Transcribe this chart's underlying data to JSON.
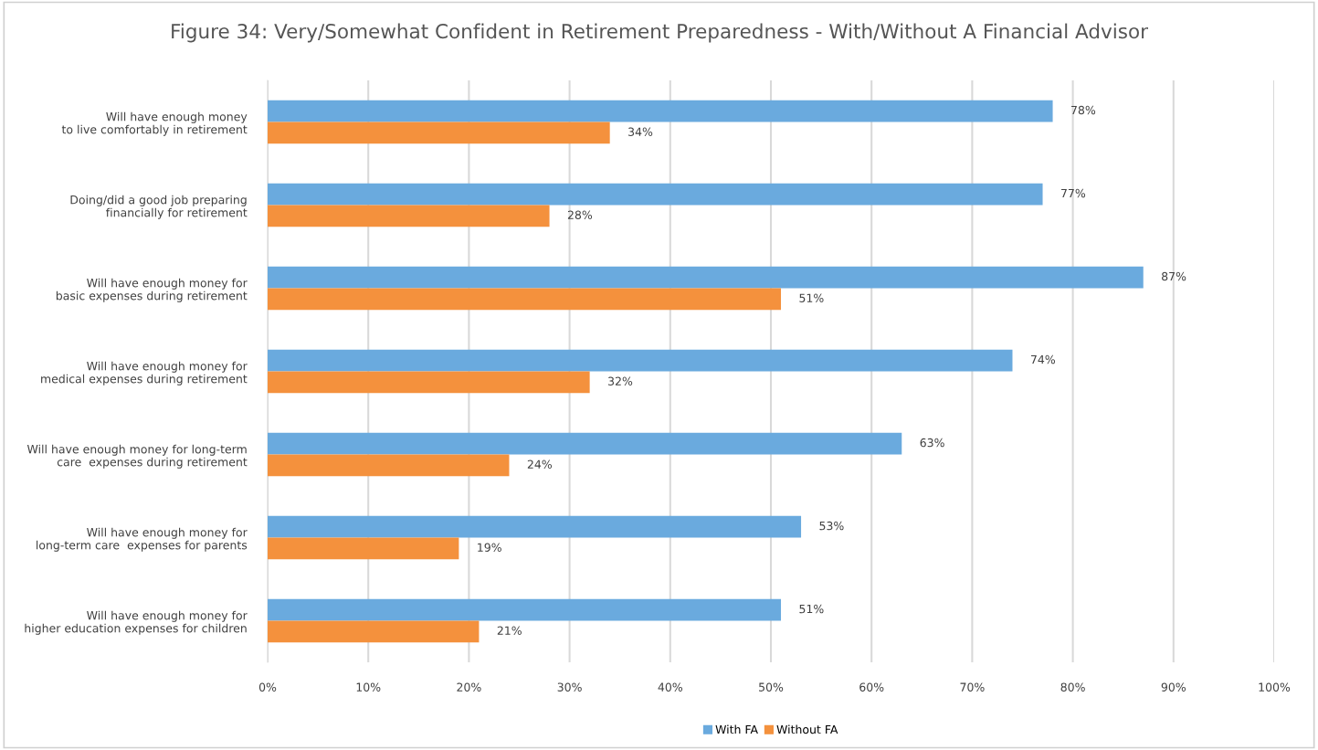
{
  "chart_data": {
    "type": "bar",
    "orientation": "horizontal",
    "title": "Figure 34: Very/Somewhat Confident in Retirement Preparedness - With/Without A Financial Advisor",
    "categories": [
      "Will have enough money\nto live comfortably in retirement",
      "Doing/did a good job preparing\nfinancially for retirement",
      "Will have enough money for\nbasic expenses during retirement",
      "Will have enough money for\nmedical expenses during retirement",
      "Will have enough money for long-term\ncare  expenses during retirement",
      "Will have enough money for\nlong-term care  expenses for parents",
      "Will have enough money for\nhigher education expenses for children"
    ],
    "series": [
      {
        "name": "With FA",
        "color": "#6aaade",
        "values": [
          78,
          77,
          87,
          74,
          63,
          53,
          51
        ],
        "value_labels": [
          "78%",
          "77%",
          "87%",
          "74%",
          "63%",
          "53%",
          "51%"
        ]
      },
      {
        "name": "Without FA",
        "color": "#f4913d",
        "values": [
          34,
          28,
          51,
          32,
          24,
          19,
          21
        ],
        "value_labels": [
          "34%",
          "28%",
          "51%",
          "32%",
          "24%",
          "19%",
          "21%"
        ]
      }
    ],
    "xlim": [
      0,
      100
    ],
    "xticks": [
      {
        "value": 0,
        "label": "0%"
      },
      {
        "value": 10,
        "label": "10%"
      },
      {
        "value": 20,
        "label": "20%"
      },
      {
        "value": 30,
        "label": "30%"
      },
      {
        "value": 40,
        "label": "40%"
      },
      {
        "value": 50,
        "label": "50%"
      },
      {
        "value": 60,
        "label": "60%"
      },
      {
        "value": 70,
        "label": "70%"
      },
      {
        "value": 80,
        "label": "80%"
      },
      {
        "value": 90,
        "label": "90%"
      },
      {
        "value": 100,
        "label": "100%"
      }
    ],
    "grid": "x",
    "legend": "bottom"
  }
}
